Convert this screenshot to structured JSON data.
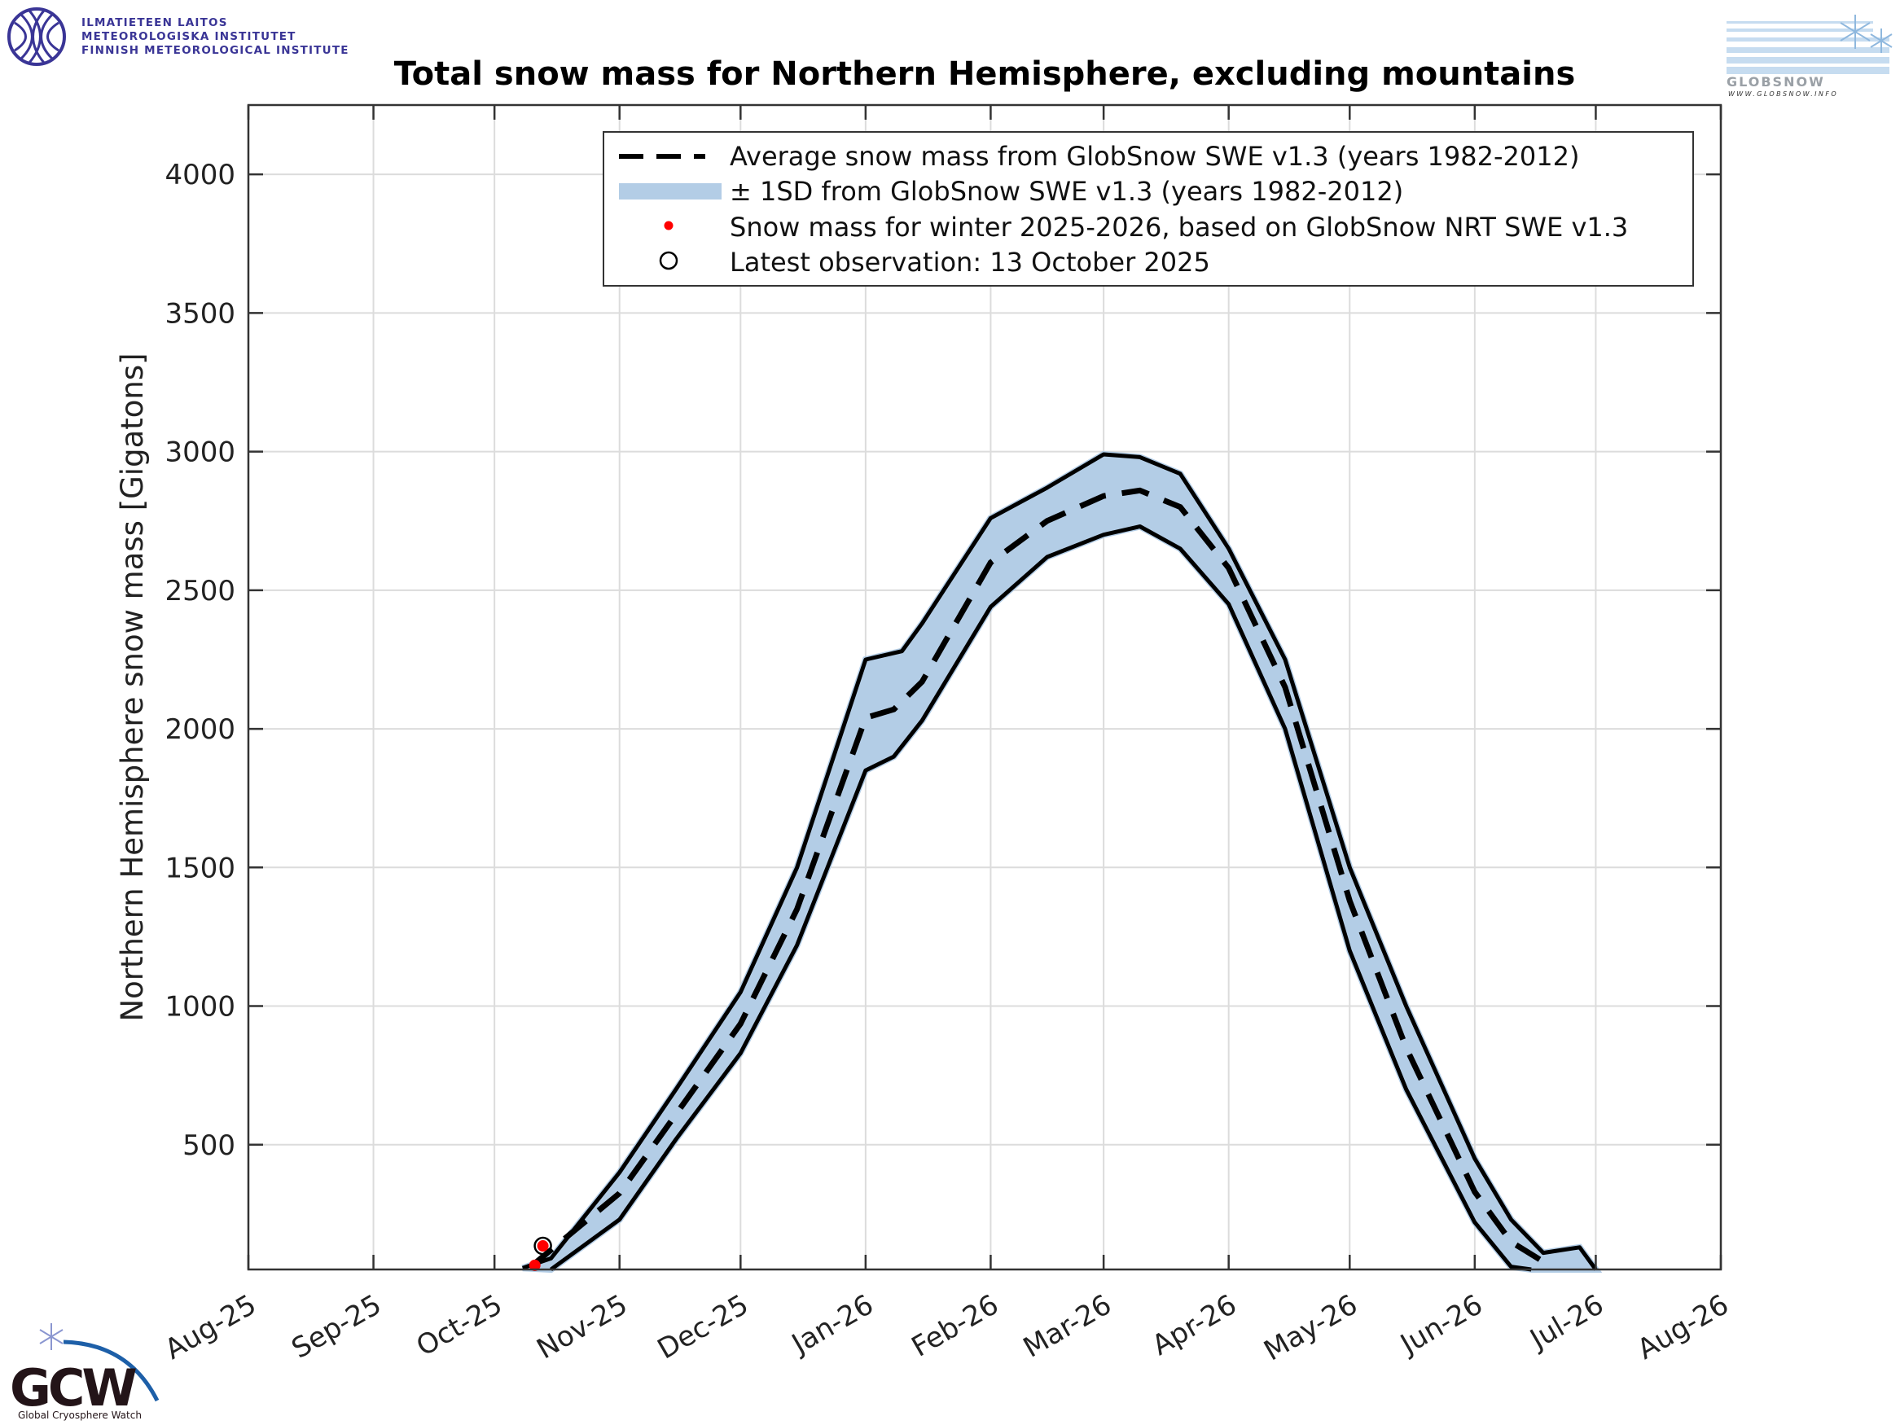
{
  "logos": {
    "fmi_lines": [
      "ILMATIETEEN LAITOS",
      "METEOROLOGISKA INSTITUTET",
      "FINNISH METEOROLOGICAL INSTITUTE"
    ],
    "globsnow_word": "GLOBSNOW",
    "globsnow_url": "WWW.GLOBSNOW.INFO",
    "gcw_letters": "GCW",
    "gcw_name": "Global Cryosphere Watch"
  },
  "chart_data": {
    "type": "area",
    "title": "Total snow mass for Northern Hemisphere, excluding mountains",
    "xlabel": "",
    "ylabel": "Northern Hemisphere snow mass [Gigatons]",
    "xlim": [
      "2025-08-01",
      "2026-08-01"
    ],
    "ylim": [
      50,
      4250
    ],
    "grid": true,
    "legend_position": "top-right",
    "x_ticks": [
      {
        "date": "2025-08-01",
        "label": "Aug-25"
      },
      {
        "date": "2025-09-01",
        "label": "Sep-25"
      },
      {
        "date": "2025-10-01",
        "label": "Oct-25"
      },
      {
        "date": "2025-11-01",
        "label": "Nov-25"
      },
      {
        "date": "2025-12-01",
        "label": "Dec-25"
      },
      {
        "date": "2026-01-01",
        "label": "Jan-26"
      },
      {
        "date": "2026-02-01",
        "label": "Feb-26"
      },
      {
        "date": "2026-03-01",
        "label": "Mar-26"
      },
      {
        "date": "2026-04-01",
        "label": "Apr-26"
      },
      {
        "date": "2026-05-01",
        "label": "May-26"
      },
      {
        "date": "2026-06-01",
        "label": "Jun-26"
      },
      {
        "date": "2026-07-01",
        "label": "Jul-26"
      },
      {
        "date": "2026-08-01",
        "label": "Aug-26"
      }
    ],
    "y_ticks": [
      500,
      1000,
      1500,
      2000,
      2500,
      3000,
      3500,
      4000
    ],
    "colors": {
      "band": "#b3cde6",
      "mean": "#000000",
      "observation": "#ff0000"
    },
    "series": [
      {
        "name": "Average snow mass from GlobSnow SWE v1.3 (years 1982-2012)",
        "style": "dashed",
        "points": [
          [
            "2025-10-10",
            60
          ],
          [
            "2025-11-01",
            325
          ],
          [
            "2025-11-15",
            610
          ],
          [
            "2025-12-01",
            936
          ],
          [
            "2025-12-15",
            1350
          ],
          [
            "2026-01-01",
            2040
          ],
          [
            "2026-01-08",
            2070
          ],
          [
            "2026-01-15",
            2170
          ],
          [
            "2026-02-01",
            2600
          ],
          [
            "2026-02-15",
            2750
          ],
          [
            "2026-03-01",
            2840
          ],
          [
            "2026-03-10",
            2860
          ],
          [
            "2026-03-20",
            2800
          ],
          [
            "2026-04-01",
            2580
          ],
          [
            "2026-04-15",
            2150
          ],
          [
            "2026-05-01",
            1380
          ],
          [
            "2026-05-15",
            850
          ],
          [
            "2026-06-01",
            330
          ],
          [
            "2026-06-10",
            150
          ],
          [
            "2026-06-20",
            60
          ]
        ]
      },
      {
        "name": "± 1SD from GlobSnow SWE v1.3 (years 1982-2012)",
        "style": "band",
        "upper": [
          [
            "2025-10-08",
            55
          ],
          [
            "2025-10-15",
            90
          ],
          [
            "2025-11-01",
            400
          ],
          [
            "2025-11-15",
            700
          ],
          [
            "2025-12-01",
            1050
          ],
          [
            "2025-12-15",
            1500
          ],
          [
            "2026-01-01",
            2250
          ],
          [
            "2026-01-10",
            2280
          ],
          [
            "2026-01-15",
            2380
          ],
          [
            "2026-02-01",
            2760
          ],
          [
            "2026-02-15",
            2870
          ],
          [
            "2026-03-01",
            2990
          ],
          [
            "2026-03-10",
            2980
          ],
          [
            "2026-03-20",
            2920
          ],
          [
            "2026-04-01",
            2650
          ],
          [
            "2026-04-15",
            2250
          ],
          [
            "2026-05-01",
            1500
          ],
          [
            "2026-05-15",
            1000
          ],
          [
            "2026-06-01",
            450
          ],
          [
            "2026-06-10",
            230
          ],
          [
            "2026-06-18",
            110
          ],
          [
            "2026-06-27",
            130
          ],
          [
            "2026-07-01",
            50
          ]
        ],
        "lower": [
          [
            "2025-10-15",
            50
          ],
          [
            "2025-11-01",
            230
          ],
          [
            "2025-11-15",
            520
          ],
          [
            "2025-12-01",
            830
          ],
          [
            "2025-12-15",
            1220
          ],
          [
            "2026-01-01",
            1850
          ],
          [
            "2026-01-08",
            1900
          ],
          [
            "2026-01-15",
            2030
          ],
          [
            "2026-02-01",
            2440
          ],
          [
            "2026-02-15",
            2620
          ],
          [
            "2026-03-01",
            2700
          ],
          [
            "2026-03-10",
            2730
          ],
          [
            "2026-03-20",
            2650
          ],
          [
            "2026-04-01",
            2450
          ],
          [
            "2026-04-15",
            2000
          ],
          [
            "2026-05-01",
            1200
          ],
          [
            "2026-05-15",
            700
          ],
          [
            "2026-06-01",
            220
          ],
          [
            "2026-06-10",
            60
          ],
          [
            "2026-06-15",
            50
          ]
        ]
      },
      {
        "name": "Snow mass for winter 2025-2026, based on GlobSnow NRT SWE v1.3",
        "style": "points",
        "points": [
          [
            "2025-10-11",
            65
          ],
          [
            "2025-10-13",
            135
          ]
        ]
      }
    ],
    "legend": [
      "Average snow mass from GlobSnow SWE v1.3 (years 1982-2012)",
      "± 1SD from GlobSnow SWE v1.3 (years 1982-2012)",
      "Snow mass for winter 2025-2026, based on GlobSnow NRT SWE v1.3",
      "Latest observation: 13 October 2025"
    ],
    "latest_observation": {
      "date": "2025-10-13",
      "value": 135
    }
  }
}
